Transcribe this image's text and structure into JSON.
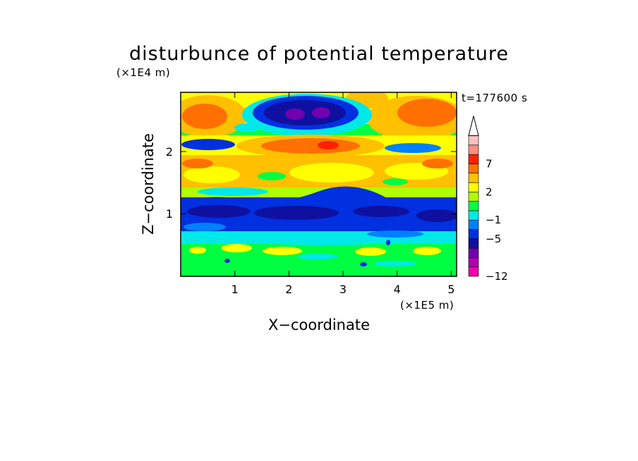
{
  "chart_data": {
    "type": "heatmap",
    "title": "disturbunce of potential temperature",
    "xlabel": "X−coordinate",
    "ylabel": "Z−coordinate",
    "x_unit": "(×1E5 m)",
    "y_unit": "(×1E4 m)",
    "time_label": "t=177600 s",
    "xlim": [
      0,
      5.1
    ],
    "ylim": [
      0,
      2.95
    ],
    "x_ticks": [
      "1",
      "2",
      "3",
      "4",
      "5"
    ],
    "y_ticks": [
      "1",
      "2"
    ],
    "colorbar": {
      "levels": [
        -12,
        -11,
        -9,
        -7,
        -5,
        -3,
        -1,
        0,
        1,
        2,
        3,
        5,
        7,
        9,
        11
      ],
      "tick_labels": [
        "−12",
        "−5",
        "−1",
        "2",
        "7"
      ],
      "colors": [
        "#ee00aa",
        "#b000b0",
        "#7000b0",
        "#1010a0",
        "#0030e0",
        "#0080ff",
        "#00e8e8",
        "#00ff40",
        "#b0ff00",
        "#ffff00",
        "#ffc000",
        "#ff7000",
        "#ff2000",
        "#ff9080",
        "#ffc0c0"
      ],
      "extend": "max"
    },
    "field_bands": [
      {
        "z_range": [
          0,
          0.08
        ],
        "dominant_value": 0.5
      },
      {
        "z_range": [
          0.08,
          0.35
        ],
        "dominant_value": 1.5
      },
      {
        "z_range": [
          0.35,
          0.5
        ],
        "dominant_value": 0.5
      },
      {
        "z_range": [
          0.5,
          0.7
        ],
        "dominant_value": -1
      },
      {
        "z_range": [
          0.7,
          1.25
        ],
        "dominant_value": -5
      },
      {
        "z_range": [
          1.25,
          1.45
        ],
        "dominant_value": 0.5
      },
      {
        "z_range": [
          1.45,
          2.05
        ],
        "dominant_value": 2.5
      },
      {
        "z_range": [
          2.05,
          2.3
        ],
        "dominant_value": 4
      },
      {
        "z_range": [
          2.3,
          2.95
        ],
        "dominant_value": 2
      }
    ],
    "features": [
      {
        "x": 2.5,
        "z": 2.55,
        "value": -9
      },
      {
        "x": 2.4,
        "z": 2.05,
        "value": 7
      },
      {
        "x": 0.3,
        "z": 2.6,
        "value": 5
      },
      {
        "x": 4.9,
        "z": 2.6,
        "value": 5
      },
      {
        "x": 0.6,
        "z": 2.05,
        "value": -3
      },
      {
        "x": 4.2,
        "z": 2.1,
        "value": -3
      },
      {
        "x": 3.5,
        "z": 0.4,
        "value": 2
      },
      {
        "x": 1.8,
        "z": 0.35,
        "value": 2
      }
    ]
  }
}
